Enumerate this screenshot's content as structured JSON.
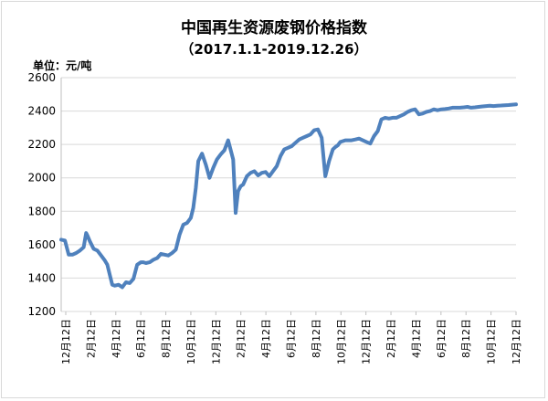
{
  "chart_data": {
    "type": "line",
    "title": "中国再生资源废钢价格指数",
    "subtitle": "（2017.1.1-2019.12.26）",
    "unit_label": "单位：元/吨",
    "ylim": [
      1200,
      2600
    ],
    "yticks": [
      1200,
      1400,
      1600,
      1800,
      2000,
      2200,
      2400,
      2600
    ],
    "grid": "horizontal",
    "line_color": "#4f81bd",
    "x_tick_labels": [
      "12月12日",
      "2月12日",
      "4月12日",
      "6月12日",
      "8月12日",
      "10月12日",
      "12月12日",
      "2月12日",
      "4月12日",
      "6月12日",
      "8月12日",
      "10月12日",
      "12月12日",
      "2月12日",
      "4月12日",
      "6月12日",
      "8月12日",
      "10月12日",
      "12月12日"
    ],
    "x_range": [
      0,
      36.5
    ],
    "series": [
      {
        "x": [
          0,
          0.3,
          0.6,
          0.9,
          1.2,
          1.5,
          1.8,
          2.0,
          2.1,
          2.3,
          2.6,
          2.9,
          3.2,
          3.5,
          3.7,
          3.9,
          4.1,
          4.3,
          4.6,
          4.9,
          5.2,
          5.5,
          5.8,
          6.1,
          6.4,
          6.6,
          6.8,
          7.1,
          7.4,
          7.7,
          8.0,
          8.3,
          8.6,
          8.9,
          9.2,
          9.5,
          9.8,
          10.1,
          10.4,
          10.6,
          10.8,
          11.0,
          11.3,
          11.6,
          11.9,
          12.2,
          12.5,
          12.8,
          13.1,
          13.4,
          13.8,
          14.0,
          14.2,
          14.4,
          14.6,
          14.9,
          15.2,
          15.5,
          15.8,
          16.1,
          16.4,
          16.7,
          17.0,
          17.3,
          17.6,
          17.9,
          18.2,
          18.5,
          18.8,
          19.1,
          19.4,
          19.7,
          20.0,
          20.3,
          20.6,
          20.9,
          21.2,
          21.5,
          21.8,
          22.0,
          22.2,
          22.4,
          22.6,
          22.8,
          23.0,
          23.3,
          23.6,
          23.9,
          24.2,
          24.5,
          24.8,
          25.1,
          25.4,
          25.7,
          26.0,
          26.3,
          26.6,
          26.9,
          27.2,
          27.5,
          27.8,
          28.1,
          28.4,
          28.7,
          29.0,
          29.3,
          29.6,
          29.9,
          30.2,
          30.5,
          30.8,
          31.1,
          31.4,
          31.7,
          32.0,
          32.3,
          32.6,
          32.9,
          33.2,
          33.5,
          33.8,
          34.1,
          34.4,
          34.7,
          35.0,
          35.3,
          35.6,
          35.9,
          36.2,
          36.5
        ],
        "values": [
          1630,
          1625,
          1540,
          1540,
          1550,
          1565,
          1585,
          1670,
          1655,
          1620,
          1575,
          1565,
          1535,
          1505,
          1480,
          1420,
          1360,
          1355,
          1360,
          1345,
          1375,
          1370,
          1395,
          1480,
          1495,
          1495,
          1490,
          1495,
          1510,
          1520,
          1545,
          1540,
          1535,
          1550,
          1570,
          1660,
          1720,
          1730,
          1760,
          1820,
          1940,
          2100,
          2145,
          2080,
          2000,
          2060,
          2110,
          2140,
          2165,
          2225,
          2110,
          1790,
          1920,
          1950,
          1960,
          2010,
          2030,
          2040,
          2015,
          2030,
          2035,
          2010,
          2040,
          2070,
          2130,
          2170,
          2180,
          2190,
          2210,
          2230,
          2240,
          2250,
          2260,
          2285,
          2290,
          2240,
          2010,
          2100,
          2170,
          2185,
          2195,
          2215,
          2220,
          2225,
          2225,
          2225,
          2230,
          2235,
          2225,
          2215,
          2205,
          2250,
          2280,
          2350,
          2360,
          2355,
          2360,
          2360,
          2370,
          2380,
          2395,
          2405,
          2410,
          2380,
          2385,
          2395,
          2400,
          2410,
          2405,
          2410,
          2412,
          2415,
          2420,
          2420,
          2420,
          2422,
          2425,
          2420,
          2422,
          2425,
          2428,
          2430,
          2432,
          2430,
          2432,
          2433,
          2435,
          2436,
          2438,
          2440
        ]
      }
    ]
  }
}
